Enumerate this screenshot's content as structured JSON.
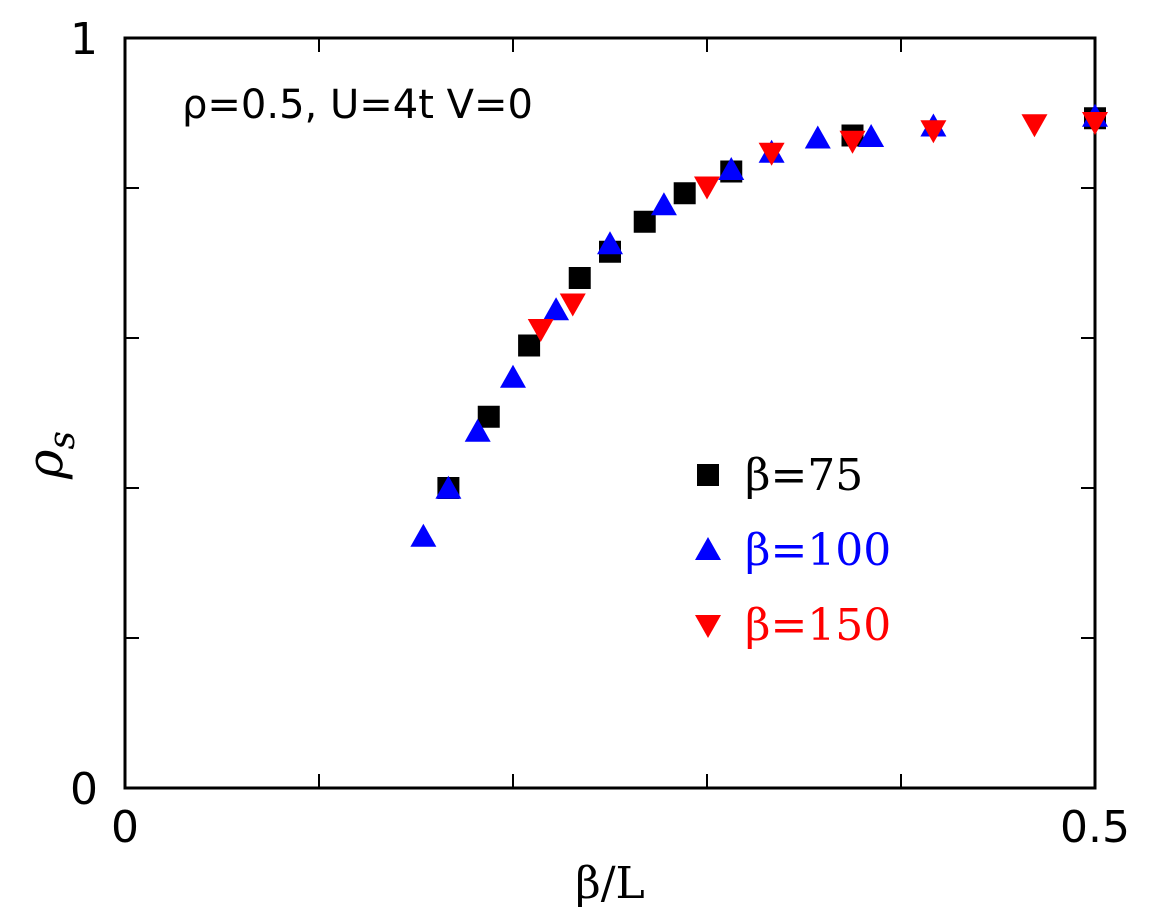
{
  "chart_data": {
    "type": "scatter",
    "annotation": "ρ=0.5, U=4t V=0",
    "xlabel": "β/L",
    "ylabel_symbol": "ρ",
    "ylabel_subscript": "s",
    "xlim": [
      0,
      0.5
    ],
    "ylim": [
      0,
      1
    ],
    "x_ticks": [
      0,
      0.1,
      0.2,
      0.3,
      0.4,
      0.5
    ],
    "y_ticks": [
      0,
      0.2,
      0.4,
      0.6,
      0.8,
      1.0
    ],
    "x_tick_labels": [
      {
        "value": 0,
        "label": "0"
      },
      {
        "value": 0.5,
        "label": "0.5"
      }
    ],
    "y_tick_labels": [
      {
        "value": 0,
        "label": "0"
      },
      {
        "value": 1,
        "label": "1"
      }
    ],
    "legend_position": "center-right",
    "series": [
      {
        "name": "β=75",
        "marker": "square",
        "color": "#000000",
        "points": [
          [
            0.1667,
            0.4
          ],
          [
            0.1875,
            0.495
          ],
          [
            0.2083,
            0.59
          ],
          [
            0.2344,
            0.68
          ],
          [
            0.25,
            0.715
          ],
          [
            0.2679,
            0.755
          ],
          [
            0.2885,
            0.793
          ],
          [
            0.3125,
            0.822
          ],
          [
            0.375,
            0.87
          ],
          [
            0.5,
            0.893
          ]
        ]
      },
      {
        "name": "β=100",
        "marker": "triangle-up",
        "color": "#0000ff",
        "points": [
          [
            0.1538,
            0.335
          ],
          [
            0.1667,
            0.399
          ],
          [
            0.1818,
            0.475
          ],
          [
            0.2,
            0.547
          ],
          [
            0.2222,
            0.637
          ],
          [
            0.25,
            0.725
          ],
          [
            0.2778,
            0.777
          ],
          [
            0.3125,
            0.824
          ],
          [
            0.3333,
            0.847
          ],
          [
            0.3571,
            0.866
          ],
          [
            0.3846,
            0.868
          ],
          [
            0.4167,
            0.882
          ],
          [
            0.5,
            0.895
          ]
        ]
      },
      {
        "name": "β=150",
        "marker": "triangle-down",
        "color": "#ff0000",
        "points": [
          [
            0.2143,
            0.612
          ],
          [
            0.2308,
            0.646
          ],
          [
            0.3,
            0.802
          ],
          [
            0.3333,
            0.847
          ],
          [
            0.375,
            0.863
          ],
          [
            0.4167,
            0.877
          ],
          [
            0.4688,
            0.885
          ],
          [
            0.5,
            0.888
          ]
        ]
      }
    ]
  }
}
